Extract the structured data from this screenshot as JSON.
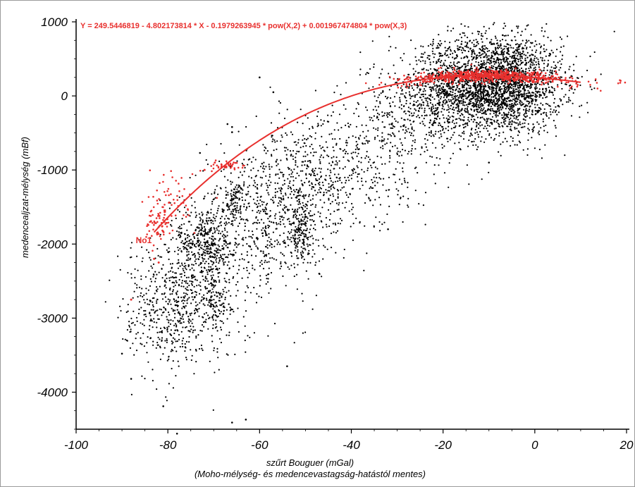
{
  "chart_data": {
    "type": "scatter",
    "title": "",
    "xlabel": "szűrt Bouguer (mGal)",
    "xlabel_sub": "(Moho-mélység- és medencevastagság-hatástól mentes)",
    "ylabel": "medencealjzat-mélység (mBf)",
    "xlim": [
      -100,
      20
    ],
    "ylim": [
      -4500,
      1000
    ],
    "x_ticks": [
      -100,
      -80,
      -60,
      -40,
      -20,
      0,
      20
    ],
    "y_ticks": [
      1000,
      0,
      -1000,
      -2000,
      -3000,
      -4000
    ],
    "x_tick_labels": [
      "-100",
      "-80",
      "-60",
      "-40",
      "-20",
      "0",
      "20"
    ],
    "y_tick_labels": [
      "1000",
      "0",
      "-1000",
      "-2000",
      "-3000",
      "-4000"
    ],
    "grid": false,
    "fit": {
      "equation_text": "Y = 249.5446819 - 4.802173814 * X - 0.1979263945 * pow(X,2) + 0.001967474804 * pow(X,3)",
      "coefficients": [
        249.5446819,
        -4.802173814,
        -0.1979263945,
        0.001967474804
      ],
      "x_range": [
        -83,
        10
      ],
      "color": "#e8302e"
    },
    "annotations": [
      {
        "text": "No1",
        "x": -87,
        "y": -1990
      }
    ],
    "series": [
      {
        "color": "#000000",
        "description_points": "dense black scatter",
        "clusters": [
          {
            "cx": -8,
            "cy": 150,
            "sx": 7,
            "sy": 330,
            "n": 2600
          },
          {
            "cx": -20,
            "cy": 60,
            "sx": 6,
            "sy": 320,
            "n": 500
          },
          {
            "cx": -30,
            "cy": -400,
            "sx": 6,
            "sy": 380,
            "n": 300
          },
          {
            "cx": -42,
            "cy": -1000,
            "sx": 7,
            "sy": 420,
            "n": 350
          },
          {
            "cx": -52,
            "cy": -1450,
            "sx": 6,
            "sy": 500,
            "n": 400
          },
          {
            "cx": -51,
            "cy": -1800,
            "sx": 1.4,
            "sy": 180,
            "n": 150
          },
          {
            "cx": -62,
            "cy": -1700,
            "sx": 6,
            "sy": 550,
            "n": 450
          },
          {
            "cx": -72,
            "cy": -1950,
            "sx": 3,
            "sy": 250,
            "n": 350
          },
          {
            "cx": -70,
            "cy": -2700,
            "sx": 1.2,
            "sy": 250,
            "n": 120
          },
          {
            "cx": -66,
            "cy": -1380,
            "sx": 1.2,
            "sy": 120,
            "n": 80
          },
          {
            "cx": -76,
            "cy": -2700,
            "sx": 6,
            "sy": 450,
            "n": 500
          },
          {
            "cx": -82,
            "cy": -3000,
            "sx": 4,
            "sy": 400,
            "n": 200
          }
        ],
        "outliers": [
          [
            -16,
            700
          ],
          [
            -17,
            550
          ],
          [
            -7,
            820
          ],
          [
            -5,
            880
          ],
          [
            -6,
            700
          ],
          [
            -60,
            250
          ],
          [
            -57,
            50
          ],
          [
            -66,
            -420
          ],
          [
            -66,
            -490
          ],
          [
            -67,
            -380
          ],
          [
            -73,
            -770
          ],
          [
            -90,
            -3480
          ],
          [
            -88,
            -3820
          ],
          [
            -81,
            -4190
          ],
          [
            -78,
            -4560
          ],
          [
            -66,
            -4410
          ],
          [
            -63,
            -4370
          ],
          [
            -54,
            -3650
          ],
          [
            -47,
            -2400
          ],
          [
            -32,
            -1800
          ],
          [
            -10,
            -900
          ]
        ]
      },
      {
        "color": "#e8302e",
        "description_points": "red scatter along the fitted curve",
        "clusters": [
          {
            "cx": -10,
            "cy": 260,
            "sx": 9,
            "sy": 40,
            "n": 700
          },
          {
            "cx": -82,
            "cy": -1720,
            "sx": 1.5,
            "sy": 120,
            "n": 70
          },
          {
            "cx": -67,
            "cy": -940,
            "sx": 1.8,
            "sy": 30,
            "n": 40
          },
          {
            "cx": -79,
            "cy": -1400,
            "sx": 3,
            "sy": 200,
            "n": 50
          }
        ],
        "outliers": [
          [
            -88,
            -2750
          ],
          [
            -83,
            -2200
          ],
          [
            -82,
            -2250
          ],
          [
            -72,
            -1000
          ]
        ]
      }
    ]
  }
}
